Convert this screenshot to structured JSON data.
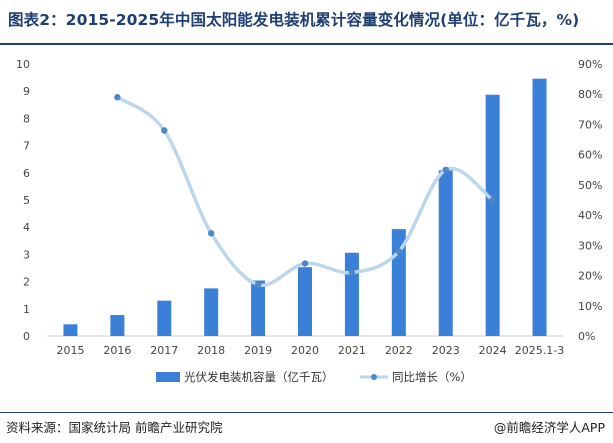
{
  "header": {
    "title": "图表2：2015-2025年中国太阳能发电装机累计容量变化情况(单位：亿千瓦，%)"
  },
  "footer": {
    "source": "资料来源：国家统计局 前瞻产业研究院",
    "credit": "@前瞻经济学人APP"
  },
  "colors": {
    "bar": "#3a7fd8",
    "line": "#bcd6ee",
    "marker": "#4f86c6",
    "title": "#1f3f73"
  },
  "chart_data": {
    "type": "bar",
    "categories": [
      "2015",
      "2016",
      "2017",
      "2018",
      "2019",
      "2020",
      "2021",
      "2022",
      "2023",
      "2024",
      "2025.1-3"
    ],
    "series": [
      {
        "name": "光伏发电装机容量（亿千瓦）",
        "type": "bar",
        "axis": "left",
        "values": [
          0.43,
          0.77,
          1.3,
          1.75,
          2.04,
          2.53,
          3.06,
          3.93,
          6.09,
          8.87,
          9.46
        ]
      },
      {
        "name": "同比增长（%）",
        "type": "line",
        "axis": "right",
        "values": [
          null,
          79,
          68,
          34,
          17,
          24,
          21,
          28,
          55,
          45,
          null
        ]
      }
    ],
    "left_axis": {
      "min": 0,
      "max": 10,
      "ticks": [
        "0",
        "1",
        "2",
        "3",
        "4",
        "5",
        "6",
        "7",
        "8",
        "9",
        "10"
      ]
    },
    "right_axis": {
      "min": 0,
      "max": 90,
      "ticks": [
        "0%",
        "10%",
        "20%",
        "30%",
        "40%",
        "50%",
        "60%",
        "70%",
        "80%",
        "90%"
      ]
    },
    "grid": false,
    "legend_position": "bottom"
  }
}
